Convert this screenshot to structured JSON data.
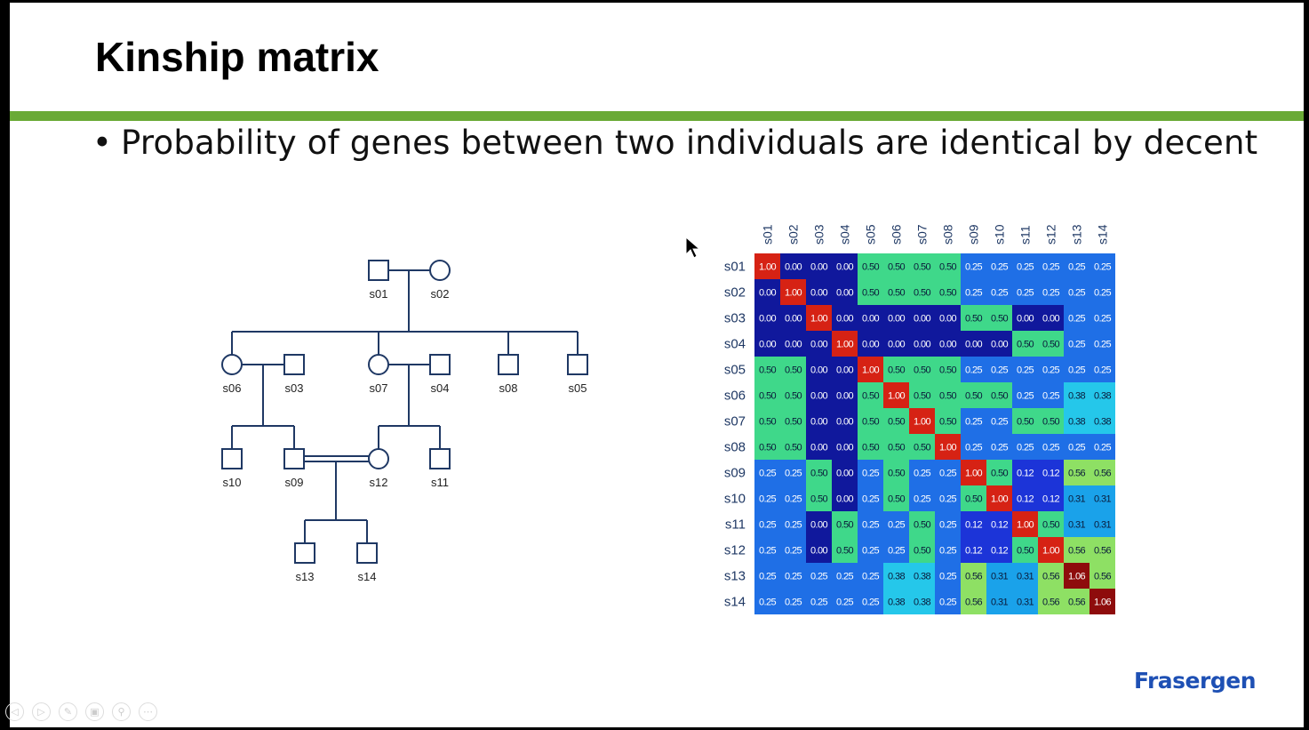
{
  "slide": {
    "title": "Kinship matrix",
    "bullet": "Probability of genes between two individuals are identical by decent",
    "logo": "Frasergen",
    "colors": {
      "accent_bar": "#6aaa36",
      "logo": "#1e50b4",
      "line": "#1f3864"
    }
  },
  "pedigree": {
    "individuals": [
      {
        "id": "s01",
        "sex": "male"
      },
      {
        "id": "s02",
        "sex": "female"
      },
      {
        "id": "s06",
        "sex": "female"
      },
      {
        "id": "s03",
        "sex": "male"
      },
      {
        "id": "s07",
        "sex": "female"
      },
      {
        "id": "s04",
        "sex": "male"
      },
      {
        "id": "s08",
        "sex": "male"
      },
      {
        "id": "s05",
        "sex": "male"
      },
      {
        "id": "s10",
        "sex": "male"
      },
      {
        "id": "s09",
        "sex": "male"
      },
      {
        "id": "s12",
        "sex": "female"
      },
      {
        "id": "s11",
        "sex": "male"
      },
      {
        "id": "s13",
        "sex": "male"
      },
      {
        "id": "s14",
        "sex": "male"
      }
    ]
  },
  "chart_data": {
    "type": "heatmap",
    "title": "",
    "labels": [
      "s01",
      "s02",
      "s03",
      "s04",
      "s05",
      "s06",
      "s07",
      "s08",
      "s09",
      "s10",
      "s11",
      "s12",
      "s13",
      "s14"
    ],
    "values": [
      [
        1.0,
        0.0,
        0.0,
        0.0,
        0.5,
        0.5,
        0.5,
        0.5,
        0.25,
        0.25,
        0.25,
        0.25,
        0.25,
        0.25
      ],
      [
        0.0,
        1.0,
        0.0,
        0.0,
        0.5,
        0.5,
        0.5,
        0.5,
        0.25,
        0.25,
        0.25,
        0.25,
        0.25,
        0.25
      ],
      [
        0.0,
        0.0,
        1.0,
        0.0,
        0.0,
        0.0,
        0.0,
        0.0,
        0.5,
        0.5,
        0.0,
        0.0,
        0.25,
        0.25
      ],
      [
        0.0,
        0.0,
        0.0,
        1.0,
        0.0,
        0.0,
        0.0,
        0.0,
        0.0,
        0.0,
        0.5,
        0.5,
        0.25,
        0.25
      ],
      [
        0.5,
        0.5,
        0.0,
        0.0,
        1.0,
        0.5,
        0.5,
        0.5,
        0.25,
        0.25,
        0.25,
        0.25,
        0.25,
        0.25
      ],
      [
        0.5,
        0.5,
        0.0,
        0.0,
        0.5,
        1.0,
        0.5,
        0.5,
        0.5,
        0.5,
        0.25,
        0.25,
        0.38,
        0.38
      ],
      [
        0.5,
        0.5,
        0.0,
        0.0,
        0.5,
        0.5,
        1.0,
        0.5,
        0.25,
        0.25,
        0.5,
        0.5,
        0.38,
        0.38
      ],
      [
        0.5,
        0.5,
        0.0,
        0.0,
        0.5,
        0.5,
        0.5,
        1.0,
        0.25,
        0.25,
        0.25,
        0.25,
        0.25,
        0.25
      ],
      [
        0.25,
        0.25,
        0.5,
        0.0,
        0.25,
        0.5,
        0.25,
        0.25,
        1.0,
        0.5,
        0.12,
        0.12,
        0.56,
        0.56
      ],
      [
        0.25,
        0.25,
        0.5,
        0.0,
        0.25,
        0.5,
        0.25,
        0.25,
        0.5,
        1.0,
        0.12,
        0.12,
        0.31,
        0.31
      ],
      [
        0.25,
        0.25,
        0.0,
        0.5,
        0.25,
        0.25,
        0.5,
        0.25,
        0.12,
        0.12,
        1.0,
        0.5,
        0.31,
        0.31
      ],
      [
        0.25,
        0.25,
        0.0,
        0.5,
        0.25,
        0.25,
        0.5,
        0.25,
        0.12,
        0.12,
        0.5,
        1.0,
        0.56,
        0.56
      ],
      [
        0.25,
        0.25,
        0.25,
        0.25,
        0.25,
        0.38,
        0.38,
        0.25,
        0.56,
        0.31,
        0.31,
        0.56,
        1.06,
        0.56
      ],
      [
        0.25,
        0.25,
        0.25,
        0.25,
        0.25,
        0.38,
        0.38,
        0.25,
        0.56,
        0.31,
        0.31,
        0.56,
        0.56,
        1.06
      ]
    ],
    "colors": {
      "0.00": "#10189c",
      "0.12": "#1c34d8",
      "0.25": "#1f6fe6",
      "0.31": "#1aa2ea",
      "0.38": "#25c7ea",
      "0.50": "#3fd88a",
      "0.56": "#8ee064",
      "1.00": "#d62214",
      "1.06": "#8e0c0c"
    }
  },
  "controls": [
    "◁",
    "▷",
    "✎",
    "▣",
    "⚲",
    "⋯"
  ]
}
